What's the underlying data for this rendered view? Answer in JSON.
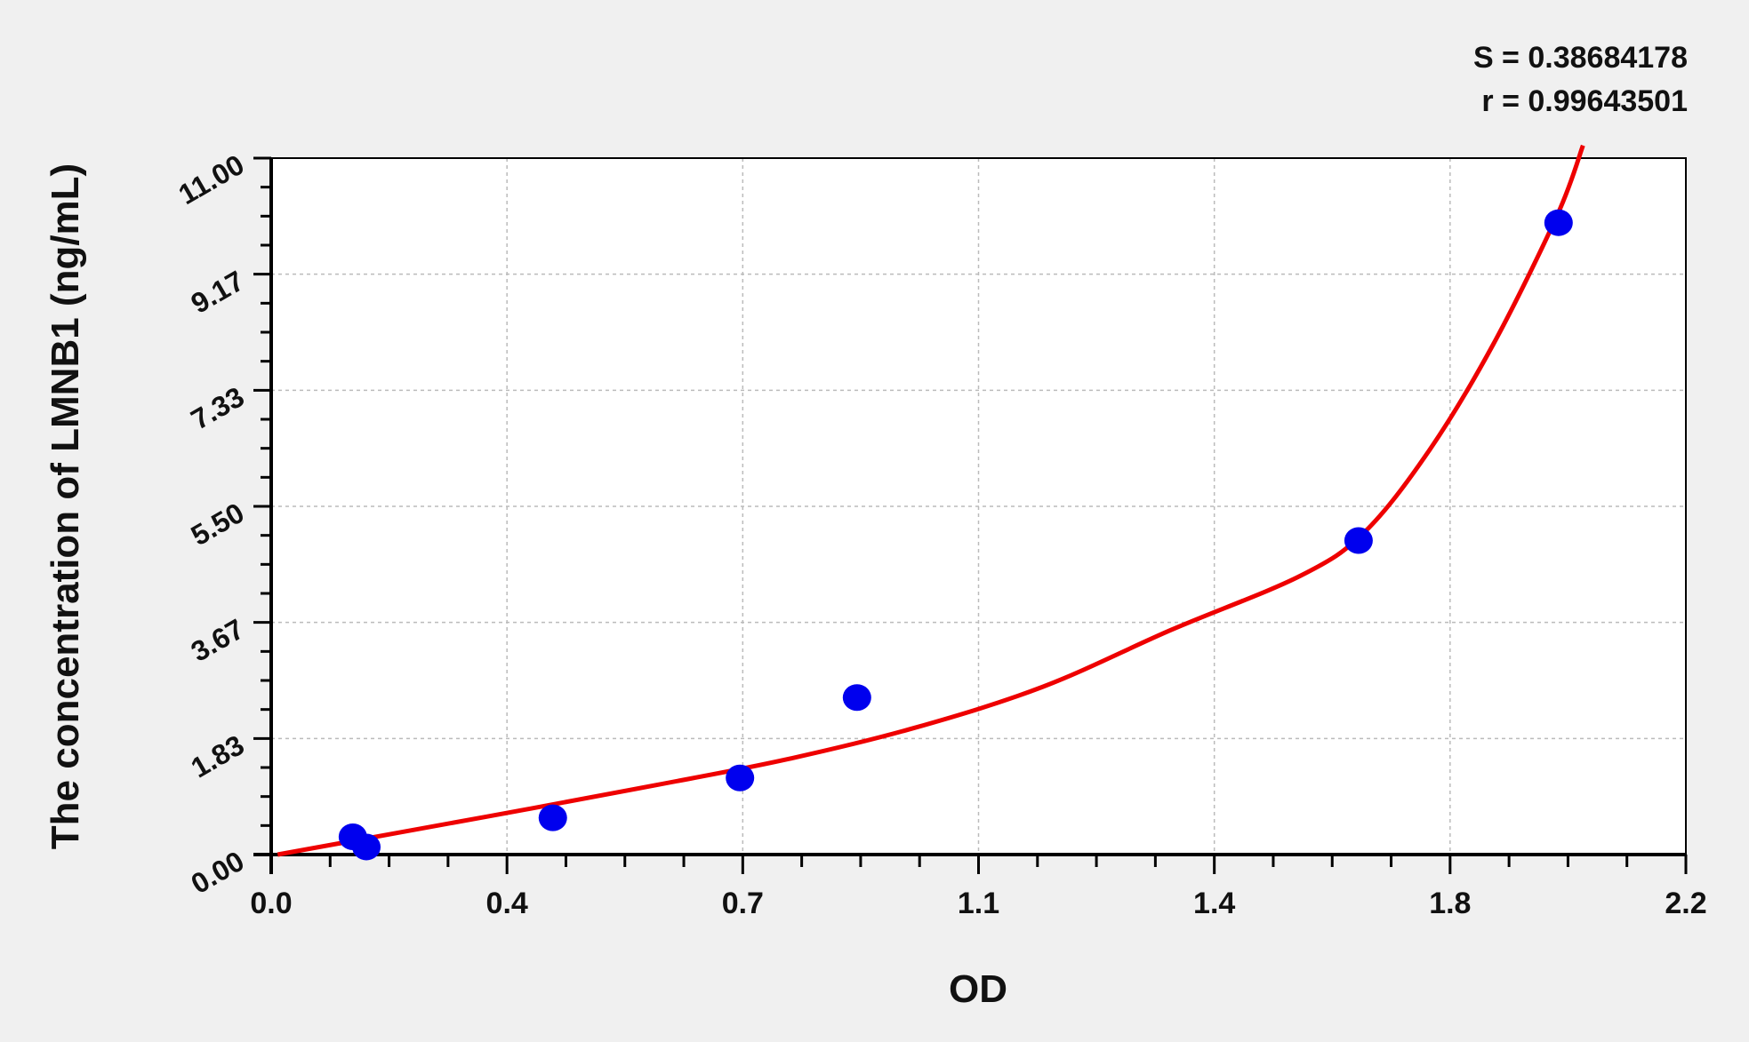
{
  "chart_data": {
    "type": "scatter",
    "xlabel": "OD",
    "ylabel": "The concentration of LMNB1 (ng/mL)",
    "xlim": [
      0,
      2.2
    ],
    "ylim": [
      0,
      11
    ],
    "x_ticks": [
      "0.0",
      "0.4",
      "0.7",
      "1.1",
      "1.4",
      "1.8",
      "2.2"
    ],
    "y_ticks": [
      "0.00",
      "1.83",
      "3.67",
      "5.50",
      "7.33",
      "9.17",
      "11.00"
    ],
    "grid": true,
    "annotations": [
      "S = 0.38684178",
      "r = 0.99643501"
    ],
    "points": {
      "color": "#0000ee",
      "x": [
        0.127,
        0.148,
        0.438,
        0.729,
        0.911,
        1.691,
        2.002
      ],
      "y": [
        0.28,
        0.12,
        0.58,
        1.21,
        2.48,
        4.96,
        9.98
      ]
    },
    "fit_curve": {
      "color": "#ee0000",
      "x": [
        0.01,
        0.2,
        0.4,
        0.6,
        0.8,
        1.0,
        1.2,
        1.4,
        1.6,
        1.7,
        1.8,
        1.9,
        2.0,
        2.04
      ],
      "y": [
        0.0,
        0.35,
        0.72,
        1.1,
        1.5,
        2.0,
        2.65,
        3.55,
        4.4,
        5.09,
        6.37,
        8.05,
        10.1,
        11.2
      ]
    }
  }
}
